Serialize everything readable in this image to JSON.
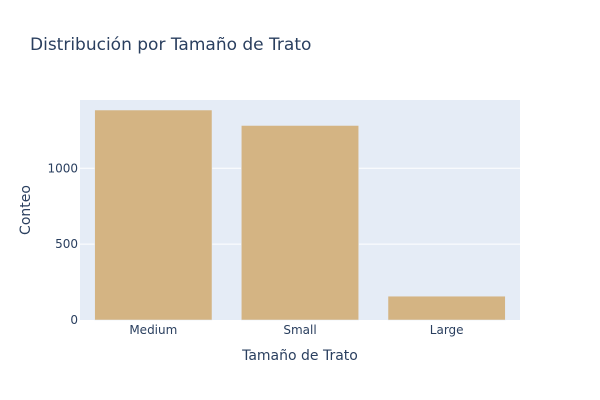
{
  "chart_data": {
    "type": "bar",
    "title": "Distribución por Tamaño de Trato",
    "xlabel": "Tamaño de Trato",
    "ylabel": "Conteo",
    "categories": [
      "Medium",
      "Small",
      "Large"
    ],
    "values": [
      1384,
      1282,
      157
    ],
    "ylim": [
      0,
      1450
    ],
    "yticks": [
      0,
      500,
      1000
    ],
    "grid": true,
    "colors": {
      "bar": "#d4b483",
      "plot_bg": "#e5ecf6",
      "grid": "#ffffff",
      "text": "#2a3f5f"
    }
  }
}
